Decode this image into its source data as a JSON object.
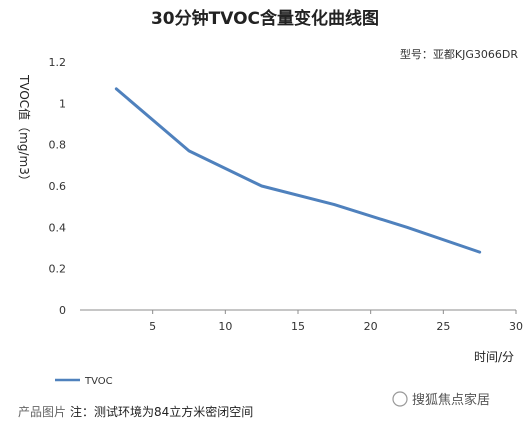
{
  "chart_data": {
    "type": "line",
    "title": "30分钟TVOC含量变化曲线图",
    "model": "型号：亚都KJG3066DR",
    "xlabel": "时间/分",
    "ylabel": "TVOC值（mg/m3）",
    "xlim": [
      0,
      30
    ],
    "ylim": [
      0,
      1.2
    ],
    "x_ticks": [
      "5",
      "10",
      "15",
      "20",
      "25",
      "30"
    ],
    "y_ticks": [
      "0",
      "0.2",
      "0.4",
      "0.6",
      "0.8",
      "1",
      "1.2"
    ],
    "grid": false,
    "legend_position": "bottom-left",
    "series": [
      {
        "name": "TVOC",
        "color": "#4f81bd",
        "x": [
          2.5,
          7.5,
          12.5,
          17.5,
          22.5,
          27.5
        ],
        "y": [
          1.07,
          0.77,
          0.6,
          0.51,
          0.4,
          0.28
        ]
      }
    ]
  },
  "note": "注：测试环境为84立方米密闭空间",
  "watermark_left": "产品图片",
  "watermark_right": "搜狐焦点家居"
}
